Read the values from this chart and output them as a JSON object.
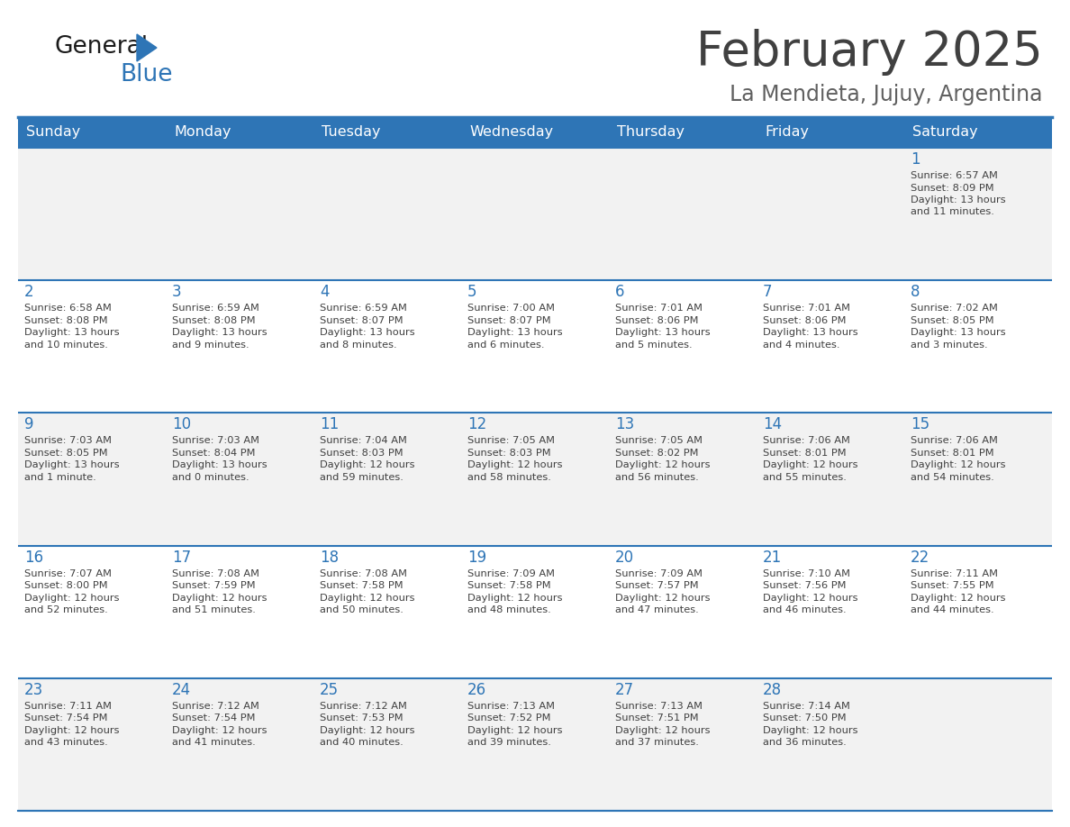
{
  "title": "February 2025",
  "subtitle": "La Mendieta, Jujuy, Argentina",
  "days_of_week": [
    "Sunday",
    "Monday",
    "Tuesday",
    "Wednesday",
    "Thursday",
    "Friday",
    "Saturday"
  ],
  "header_bg": "#2E75B6",
  "header_text": "#FFFFFF",
  "cell_bg_odd": "#F2F2F2",
  "cell_bg_even": "#FFFFFF",
  "day_num_color": "#2E75B6",
  "text_color": "#404040",
  "border_color": "#2E75B6",
  "title_color": "#404040",
  "subtitle_color": "#606060",
  "logo_general_color": "#1a1a1a",
  "logo_blue_color": "#2E75B6",
  "weeks": [
    [
      {
        "day": null,
        "info": ""
      },
      {
        "day": null,
        "info": ""
      },
      {
        "day": null,
        "info": ""
      },
      {
        "day": null,
        "info": ""
      },
      {
        "day": null,
        "info": ""
      },
      {
        "day": null,
        "info": ""
      },
      {
        "day": 1,
        "info": "Sunrise: 6:57 AM\nSunset: 8:09 PM\nDaylight: 13 hours\nand 11 minutes."
      }
    ],
    [
      {
        "day": 2,
        "info": "Sunrise: 6:58 AM\nSunset: 8:08 PM\nDaylight: 13 hours\nand 10 minutes."
      },
      {
        "day": 3,
        "info": "Sunrise: 6:59 AM\nSunset: 8:08 PM\nDaylight: 13 hours\nand 9 minutes."
      },
      {
        "day": 4,
        "info": "Sunrise: 6:59 AM\nSunset: 8:07 PM\nDaylight: 13 hours\nand 8 minutes."
      },
      {
        "day": 5,
        "info": "Sunrise: 7:00 AM\nSunset: 8:07 PM\nDaylight: 13 hours\nand 6 minutes."
      },
      {
        "day": 6,
        "info": "Sunrise: 7:01 AM\nSunset: 8:06 PM\nDaylight: 13 hours\nand 5 minutes."
      },
      {
        "day": 7,
        "info": "Sunrise: 7:01 AM\nSunset: 8:06 PM\nDaylight: 13 hours\nand 4 minutes."
      },
      {
        "day": 8,
        "info": "Sunrise: 7:02 AM\nSunset: 8:05 PM\nDaylight: 13 hours\nand 3 minutes."
      }
    ],
    [
      {
        "day": 9,
        "info": "Sunrise: 7:03 AM\nSunset: 8:05 PM\nDaylight: 13 hours\nand 1 minute."
      },
      {
        "day": 10,
        "info": "Sunrise: 7:03 AM\nSunset: 8:04 PM\nDaylight: 13 hours\nand 0 minutes."
      },
      {
        "day": 11,
        "info": "Sunrise: 7:04 AM\nSunset: 8:03 PM\nDaylight: 12 hours\nand 59 minutes."
      },
      {
        "day": 12,
        "info": "Sunrise: 7:05 AM\nSunset: 8:03 PM\nDaylight: 12 hours\nand 58 minutes."
      },
      {
        "day": 13,
        "info": "Sunrise: 7:05 AM\nSunset: 8:02 PM\nDaylight: 12 hours\nand 56 minutes."
      },
      {
        "day": 14,
        "info": "Sunrise: 7:06 AM\nSunset: 8:01 PM\nDaylight: 12 hours\nand 55 minutes."
      },
      {
        "day": 15,
        "info": "Sunrise: 7:06 AM\nSunset: 8:01 PM\nDaylight: 12 hours\nand 54 minutes."
      }
    ],
    [
      {
        "day": 16,
        "info": "Sunrise: 7:07 AM\nSunset: 8:00 PM\nDaylight: 12 hours\nand 52 minutes."
      },
      {
        "day": 17,
        "info": "Sunrise: 7:08 AM\nSunset: 7:59 PM\nDaylight: 12 hours\nand 51 minutes."
      },
      {
        "day": 18,
        "info": "Sunrise: 7:08 AM\nSunset: 7:58 PM\nDaylight: 12 hours\nand 50 minutes."
      },
      {
        "day": 19,
        "info": "Sunrise: 7:09 AM\nSunset: 7:58 PM\nDaylight: 12 hours\nand 48 minutes."
      },
      {
        "day": 20,
        "info": "Sunrise: 7:09 AM\nSunset: 7:57 PM\nDaylight: 12 hours\nand 47 minutes."
      },
      {
        "day": 21,
        "info": "Sunrise: 7:10 AM\nSunset: 7:56 PM\nDaylight: 12 hours\nand 46 minutes."
      },
      {
        "day": 22,
        "info": "Sunrise: 7:11 AM\nSunset: 7:55 PM\nDaylight: 12 hours\nand 44 minutes."
      }
    ],
    [
      {
        "day": 23,
        "info": "Sunrise: 7:11 AM\nSunset: 7:54 PM\nDaylight: 12 hours\nand 43 minutes."
      },
      {
        "day": 24,
        "info": "Sunrise: 7:12 AM\nSunset: 7:54 PM\nDaylight: 12 hours\nand 41 minutes."
      },
      {
        "day": 25,
        "info": "Sunrise: 7:12 AM\nSunset: 7:53 PM\nDaylight: 12 hours\nand 40 minutes."
      },
      {
        "day": 26,
        "info": "Sunrise: 7:13 AM\nSunset: 7:52 PM\nDaylight: 12 hours\nand 39 minutes."
      },
      {
        "day": 27,
        "info": "Sunrise: 7:13 AM\nSunset: 7:51 PM\nDaylight: 12 hours\nand 37 minutes."
      },
      {
        "day": 28,
        "info": "Sunrise: 7:14 AM\nSunset: 7:50 PM\nDaylight: 12 hours\nand 36 minutes."
      },
      {
        "day": null,
        "info": ""
      }
    ]
  ]
}
